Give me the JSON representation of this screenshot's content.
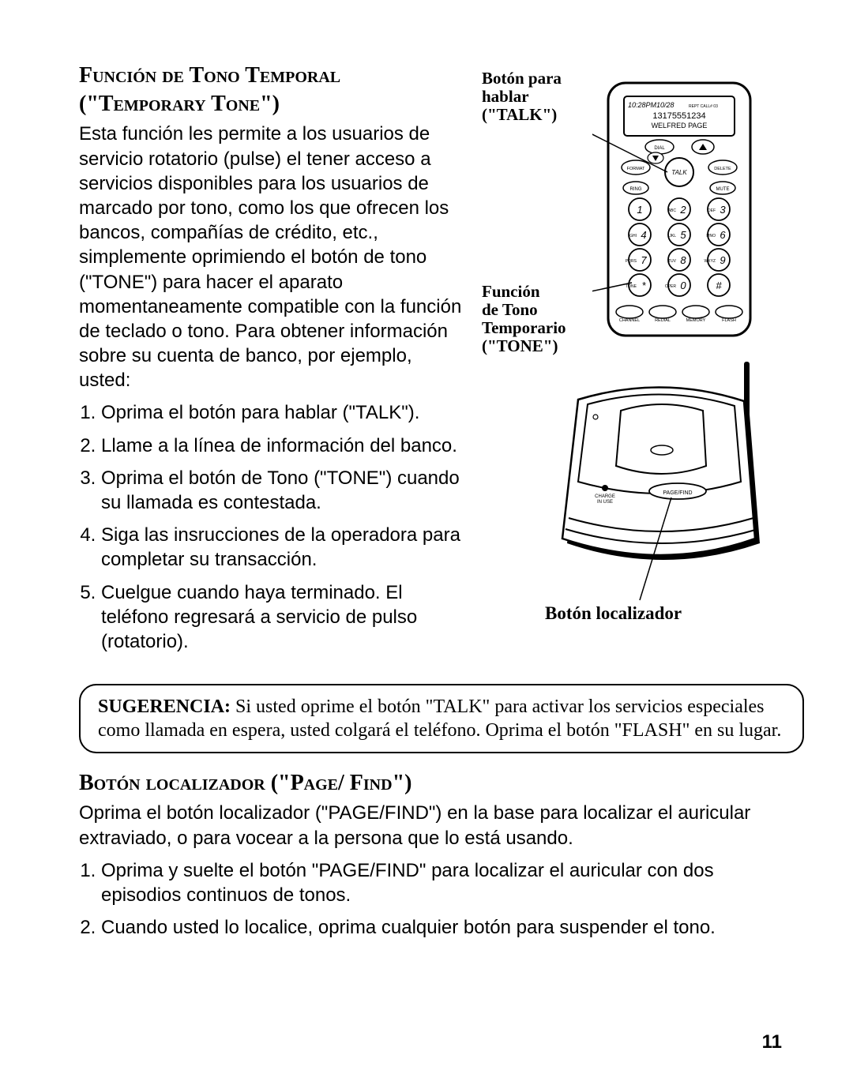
{
  "section1": {
    "heading_line1": "Función de Tono Temporal",
    "heading_line2": "(\"Temporary Tone\")",
    "paragraph": "Esta función les permite a los usuarios de servicio rotatorio (pulse) el tener acceso a servicios disponibles para los usuarios de marcado por tono, como los que ofrecen los bancos, compañías de crédito, etc., simplemente oprimiendo el botón de tono (\"TONE\") para hacer el aparato momentaneamente compatible con la función de teclado o tono. Para obtener información sobre su cuenta de banco, por ejemplo, usted:",
    "steps": [
      "Oprima el botón para hablar (\"TALK\").",
      "Llame a la línea de información del banco.",
      "Oprima el botón de Tono (\"TONE\") cuando su llamada es contestada.",
      "Siga las insrucciones de la operadora para completar su transacción.",
      "Cuelgue cuando haya terminado. El teléfono regresará a servicio de pulso (rotatorio)."
    ]
  },
  "callouts": {
    "talk_line1": "Botón para",
    "talk_line2": "hablar",
    "talk_line3": "(\"TALK\")",
    "tone_line1": "Función",
    "tone_line2": "de Tono",
    "tone_line3": "Temporario",
    "tone_line4": "(\"TONE\")",
    "base_label": "Botón localizador"
  },
  "handset": {
    "display_line1": "10:28PM10/28",
    "display_suffix": "REPT   CALL#  03",
    "display_line2": "13175551234",
    "display_line3": "WELFRED PAGE",
    "btn_dial": "DIAL",
    "btn_format": "FORMAT",
    "btn_talk": "TALK",
    "btn_delete": "DELETE",
    "btn_ring": "RING",
    "btn_mute": "MUTE",
    "keys": [
      {
        "n": "1",
        "t": ""
      },
      {
        "n": "2",
        "t": "ABC"
      },
      {
        "n": "3",
        "t": "DEF"
      },
      {
        "n": "4",
        "t": "GHI"
      },
      {
        "n": "5",
        "t": "JKL"
      },
      {
        "n": "6",
        "t": "MNO"
      },
      {
        "n": "7",
        "t": "PQRS"
      },
      {
        "n": "8",
        "t": "TUV"
      },
      {
        "n": "9",
        "t": "WXYZ"
      },
      {
        "n": "*",
        "t": "TONE"
      },
      {
        "n": "0",
        "t": "OPER"
      },
      {
        "n": "#",
        "t": ""
      }
    ],
    "bottom": [
      "CHANNEL",
      "REDIAL",
      "MEMORY",
      "FLASH"
    ]
  },
  "base": {
    "charge_label1": "CHARGE",
    "charge_label2": "IN USE",
    "pagefind": "PAGE/FIND"
  },
  "tip": {
    "label": "SUGERENCIA:",
    "text": " Si usted oprime el botón \"TALK\" para activar los servicios especiales como llamada en espera, usted colgará el teléfono. Oprima el botón \"FLASH\" en su lugar."
  },
  "section2": {
    "heading": "Botón localizador (\"Page/ Find\")",
    "paragraph": "Oprima el botón localizador (\"PAGE/FIND\") en la base para localizar el auricular extraviado, o para vocear a la persona que lo está usando.",
    "steps": [
      "Oprima y suelte el botón \"PAGE/FIND\" para localizar el auricular con dos episodios continuos de tonos.",
      "Cuando usted lo localice, oprima cualquier botón para suspender el tono."
    ]
  },
  "page_number": "11",
  "colors": {
    "text": "#000000",
    "bg": "#ffffff",
    "stroke": "#000000"
  }
}
